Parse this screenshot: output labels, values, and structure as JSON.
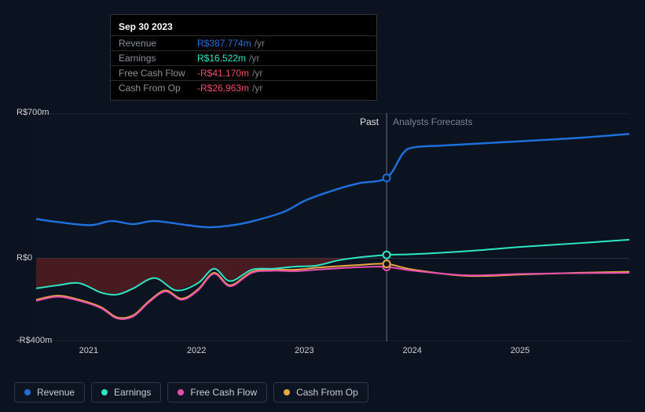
{
  "tooltip": {
    "date": "Sep 30 2023",
    "unit": "/yr",
    "rows": [
      {
        "label": "Revenue",
        "value": "R$387.774m",
        "color": "#1e6fd9"
      },
      {
        "label": "Earnings",
        "value": "R$16.522m",
        "color": "#2ee6c4"
      },
      {
        "label": "Free Cash Flow",
        "value": "-R$41.170m",
        "color": "#ec4e66"
      },
      {
        "label": "Cash From Op",
        "value": "-R$26.963m",
        "color": "#ec4e66"
      }
    ]
  },
  "chart": {
    "type": "line",
    "background_color": "#0b1320",
    "past_box_color": "rgba(16,22,34,0.55)",
    "grid_color": "#2a3240",
    "negative_fill": "rgba(180,40,30,0.35)",
    "cursor_x": 2023.75,
    "y_axis": {
      "min": -400,
      "max": 700,
      "ticks": [
        {
          "v": 700,
          "label": "R$700m"
        },
        {
          "v": 0,
          "label": "R$0"
        },
        {
          "v": -400,
          "label": "-R$400m"
        }
      ]
    },
    "x_axis": {
      "min": 2020.5,
      "max": 2026,
      "ticks": [
        {
          "v": 2021,
          "label": "2021"
        },
        {
          "v": 2022,
          "label": "2022"
        },
        {
          "v": 2023,
          "label": "2023"
        },
        {
          "v": 2024,
          "label": "2024"
        },
        {
          "v": 2025,
          "label": "2025"
        }
      ],
      "past_end": 2023.75
    },
    "labels": {
      "past": "Past",
      "forecast": "Analysts Forecasts"
    },
    "series": [
      {
        "name": "Revenue",
        "color": "#1e6fd9",
        "width": 2.5,
        "marker_at_cursor": true,
        "points": [
          [
            2020.5,
            190
          ],
          [
            2020.7,
            175
          ],
          [
            2021.0,
            160
          ],
          [
            2021.2,
            180
          ],
          [
            2021.4,
            165
          ],
          [
            2021.6,
            180
          ],
          [
            2021.9,
            160
          ],
          [
            2022.1,
            150
          ],
          [
            2022.3,
            158
          ],
          [
            2022.5,
            178
          ],
          [
            2022.8,
            225
          ],
          [
            2023.0,
            280
          ],
          [
            2023.3,
            335
          ],
          [
            2023.5,
            363
          ],
          [
            2023.75,
            388
          ],
          [
            2023.9,
            505
          ],
          [
            2024.0,
            535
          ],
          [
            2024.3,
            545
          ],
          [
            2025.0,
            565
          ],
          [
            2025.5,
            580
          ],
          [
            2026.0,
            600
          ]
        ]
      },
      {
        "name": "Earnings",
        "color": "#2ee6c4",
        "width": 2,
        "marker_at_cursor": true,
        "fill_negative": true,
        "points": [
          [
            2020.5,
            -145
          ],
          [
            2020.7,
            -130
          ],
          [
            2020.9,
            -120
          ],
          [
            2021.1,
            -165
          ],
          [
            2021.25,
            -175
          ],
          [
            2021.4,
            -145
          ],
          [
            2021.6,
            -95
          ],
          [
            2021.8,
            -155
          ],
          [
            2022.0,
            -120
          ],
          [
            2022.15,
            -50
          ],
          [
            2022.3,
            -110
          ],
          [
            2022.5,
            -55
          ],
          [
            2022.7,
            -50
          ],
          [
            2022.9,
            -40
          ],
          [
            2023.1,
            -35
          ],
          [
            2023.3,
            -10
          ],
          [
            2023.5,
            5
          ],
          [
            2023.75,
            16.5
          ],
          [
            2024.0,
            20
          ],
          [
            2024.5,
            35
          ],
          [
            2025.0,
            55
          ],
          [
            2025.5,
            72
          ],
          [
            2026.0,
            90
          ]
        ]
      },
      {
        "name": "Free Cash Flow",
        "color": "#e84db0",
        "width": 2,
        "marker_at_cursor": true,
        "points": [
          [
            2020.5,
            -205
          ],
          [
            2020.7,
            -185
          ],
          [
            2020.9,
            -205
          ],
          [
            2021.1,
            -240
          ],
          [
            2021.25,
            -290
          ],
          [
            2021.4,
            -280
          ],
          [
            2021.55,
            -210
          ],
          [
            2021.7,
            -160
          ],
          [
            2021.85,
            -200
          ],
          [
            2022.0,
            -155
          ],
          [
            2022.15,
            -75
          ],
          [
            2022.3,
            -135
          ],
          [
            2022.5,
            -70
          ],
          [
            2022.7,
            -60
          ],
          [
            2022.9,
            -62
          ],
          [
            2023.1,
            -55
          ],
          [
            2023.3,
            -48
          ],
          [
            2023.5,
            -43
          ],
          [
            2023.75,
            -41
          ],
          [
            2024.0,
            -60
          ],
          [
            2024.5,
            -82
          ],
          [
            2025.0,
            -75
          ],
          [
            2025.5,
            -72
          ],
          [
            2026.0,
            -70
          ]
        ]
      },
      {
        "name": "Cash From Op",
        "color": "#e7a83f",
        "width": 2,
        "marker_at_cursor": true,
        "points": [
          [
            2020.5,
            -200
          ],
          [
            2020.7,
            -180
          ],
          [
            2020.9,
            -200
          ],
          [
            2021.1,
            -235
          ],
          [
            2021.25,
            -285
          ],
          [
            2021.4,
            -275
          ],
          [
            2021.55,
            -205
          ],
          [
            2021.7,
            -155
          ],
          [
            2021.85,
            -195
          ],
          [
            2022.0,
            -150
          ],
          [
            2022.15,
            -70
          ],
          [
            2022.3,
            -130
          ],
          [
            2022.5,
            -65
          ],
          [
            2022.7,
            -55
          ],
          [
            2022.9,
            -55
          ],
          [
            2023.1,
            -45
          ],
          [
            2023.3,
            -38
          ],
          [
            2023.5,
            -32
          ],
          [
            2023.75,
            -27
          ],
          [
            2024.0,
            -55
          ],
          [
            2024.5,
            -85
          ],
          [
            2025.0,
            -78
          ],
          [
            2025.5,
            -70
          ],
          [
            2026.0,
            -65
          ]
        ]
      }
    ]
  },
  "legend": [
    {
      "label": "Revenue",
      "color": "#1e6fd9"
    },
    {
      "label": "Earnings",
      "color": "#2ee6c4"
    },
    {
      "label": "Free Cash Flow",
      "color": "#e84db0"
    },
    {
      "label": "Cash From Op",
      "color": "#e7a83f"
    }
  ]
}
